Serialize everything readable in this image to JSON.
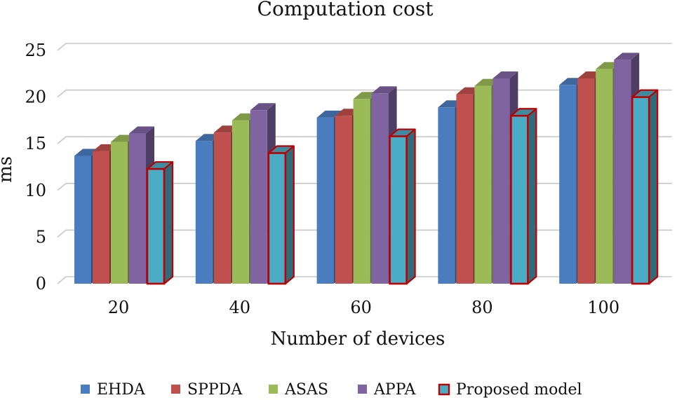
{
  "chart_data": {
    "type": "bar",
    "title": "Computation cost",
    "xlabel": "Number of devices",
    "ylabel": "ms",
    "categories": [
      "20",
      "40",
      "60",
      "80",
      "100"
    ],
    "ylim": [
      0,
      25
    ],
    "yticks": [
      "0",
      "5",
      "10",
      "15",
      "20",
      "25"
    ],
    "grid": true,
    "legend_position": "bottom",
    "series": [
      {
        "name": "EHDA",
        "color": "#4a7dbf",
        "values": [
          13.7,
          15.3,
          17.8,
          18.9,
          21.3
        ]
      },
      {
        "name": "SPPDA",
        "color": "#c0504d",
        "values": [
          14.2,
          16.2,
          18.0,
          20.3,
          22.0
        ]
      },
      {
        "name": "ASAS",
        "color": "#9bbb59",
        "values": [
          15.2,
          17.5,
          19.8,
          21.2,
          23.0
        ]
      },
      {
        "name": "APPA",
        "color": "#8064a2",
        "values": [
          16.1,
          18.6,
          20.4,
          22.0,
          24.0
        ]
      },
      {
        "name": "Proposed model",
        "color": "#4bacc6",
        "outline": "#c00000",
        "values": [
          12.3,
          14.0,
          15.8,
          18.0,
          20.0
        ]
      }
    ]
  }
}
